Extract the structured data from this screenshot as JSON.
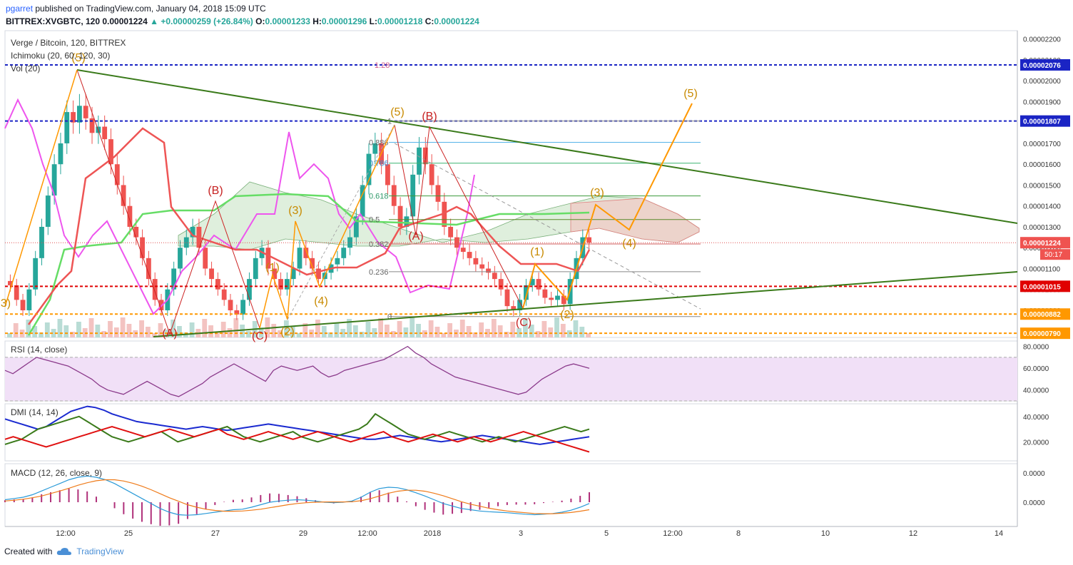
{
  "header": {
    "user": "pgarret",
    "published_text": "published on TradingView.com, January 04, 2018 15:09 UTC",
    "symbol": "BITTREX:XVGBTC, 120",
    "last": "0.00001224",
    "change": "▲ +0.00000259 (+26.84%)",
    "o_label": "O:",
    "o_value": "0.00001233",
    "h_label": "H:",
    "h_value": "0.00001296",
    "l_label": "L:",
    "l_value": "0.00001218",
    "c_label": "C:",
    "c_value": "0.00001224"
  },
  "footer": {
    "created_with": "Created with",
    "brand": "TradingView",
    "icon": "tradingview-cloud-icon"
  },
  "colors": {
    "up": "#26a69a",
    "down": "#ef5350",
    "blue_level": "#1a24c4",
    "red_level": "#e00000",
    "orange": "#ff9800",
    "trend": "#3a7a1a",
    "magenta": "#ee55ee",
    "rsi": "#8b3a8b"
  },
  "chart_data": [
    {
      "type": "candlestick",
      "pane": "main",
      "title": "Verge / Bitcoin, 120, BITTREX",
      "indicators": [
        "Ichimoku (20, 60, 120, 30)",
        "Vol (20)"
      ],
      "ylim": [
        7.7e-06,
        2.24e-05
      ],
      "y_ticks": [
        "0.00002200",
        "0.00002100",
        "0.00002000",
        "0.00001900",
        "0.00001800",
        "0.00001700",
        "0.00001600",
        "0.00001500",
        "0.00001400",
        "0.00001300",
        "0.00001200",
        "0.00001100",
        "0.00001000",
        "0.00000900",
        "0.00000800"
      ],
      "x_ticks": [
        "12:00",
        "25",
        "27",
        "29",
        "12:00",
        "2018",
        "3",
        "5",
        "12:00",
        "8",
        "10",
        "12",
        "14"
      ],
      "price_levels": [
        {
          "label": "0.00002076",
          "value": 2.076e-05,
          "style": "blue"
        },
        {
          "label": "0.00001807",
          "value": 1.807e-05,
          "style": "blue"
        },
        {
          "label": "0.00001224",
          "value": 1.224e-05,
          "style": "last"
        },
        {
          "label": "0.00001015",
          "value": 1.015e-05,
          "style": "red"
        },
        {
          "label": "0.00000882",
          "value": 8.82e-06,
          "style": "orange"
        },
        {
          "label": "0.00000790",
          "value": 7.9e-06,
          "style": "orange"
        }
      ],
      "countdown": "50:17",
      "fib_levels": [
        {
          "label": "1.28",
          "value": 2.076e-05
        },
        {
          "label": "1",
          "value": 1.807e-05
        },
        {
          "label": "0.886",
          "value": 1.705e-05
        },
        {
          "label": "0.786",
          "value": 1.605e-05
        },
        {
          "label": "0.618",
          "value": 1.448e-05
        },
        {
          "label": "0.5",
          "value": 1.335e-05
        },
        {
          "label": "0.382",
          "value": 1.218e-05
        },
        {
          "label": "0.236",
          "value": 1.085e-05
        },
        {
          "label": "0",
          "value": 8.7e-06
        }
      ],
      "wave_labels": [
        "(5)",
        "(A)",
        "(B)",
        "(C)",
        "(1)",
        "(2)",
        "(3)",
        "(4)",
        "(5)",
        "(A)",
        "(B)",
        "(C)",
        "(1)",
        "(2)",
        "(3)",
        "(4)",
        "(5)",
        "3)"
      ],
      "closes": [
        1.02e-05,
        9.5e-06,
        9e-06,
        1e-05,
        1.15e-05,
        1.3e-05,
        1.45e-05,
        1.6e-05,
        1.7e-05,
        1.85e-05,
        1.8e-05,
        1.88e-05,
        1.82e-05,
        1.75e-05,
        1.78e-05,
        1.72e-05,
        1.6e-05,
        1.5e-05,
        1.4e-05,
        1.3e-05,
        1.25e-05,
        1.15e-05,
        1.05e-05,
        9.5e-06,
        9e-06,
        1e-05,
        1.1e-05,
        1.2e-05,
        1.25e-05,
        1.3e-05,
        1.2e-05,
        1.1e-05,
        1.05e-05,
        1e-05,
        9.5e-06,
        9e-06,
        8.8e-06,
        9.5e-06,
        1.05e-05,
        1.15e-05,
        1.2e-05,
        1.1e-05,
        1.05e-05,
        1e-05,
        1.05e-05,
        1.1e-05,
        1.2e-05,
        1.15e-05,
        1.1e-05,
        1.05e-05,
        1.08e-05,
        1.12e-05,
        1.15e-05,
        1.2e-05,
        1.25e-05,
        1.35e-05,
        1.5e-05,
        1.65e-05,
        1.7e-05,
        1.6e-05,
        1.5e-05,
        1.4e-05,
        1.3e-05,
        1.35e-05,
        1.55e-05,
        1.68e-05,
        1.6e-05,
        1.5e-05,
        1.42e-05,
        1.3e-05,
        1.25e-05,
        1.2e-05,
        1.18e-05,
        1.15e-05,
        1.12e-05,
        1.1e-05,
        1.08e-05,
        1.05e-05,
        1e-05,
        9.2e-06,
        9e-06,
        9.5e-06,
        1.02e-05,
        1.05e-05,
        1e-05,
        9.6e-06,
        9.5e-06,
        9.7e-06,
        9.3e-06,
        1.05e-05,
        1.15e-05,
        1.25e-05,
        1.224e-05
      ]
    },
    {
      "type": "line",
      "pane": "rsi",
      "title": "RSI (14, close)",
      "ylim": [
        30,
        85
      ],
      "y_ticks": [
        "80.0000",
        "60.0000",
        "40.0000"
      ],
      "band": [
        30,
        70
      ],
      "values": [
        58,
        55,
        60,
        65,
        70,
        68,
        66,
        64,
        62,
        58,
        54,
        50,
        44,
        40,
        38,
        36,
        40,
        44,
        48,
        44,
        40,
        36,
        34,
        38,
        42,
        46,
        52,
        56,
        60,
        64,
        60,
        56,
        52,
        48,
        58,
        62,
        60,
        58,
        60,
        62,
        56,
        52,
        54,
        58,
        60,
        62,
        64,
        66,
        68,
        72,
        76,
        80,
        74,
        70,
        64,
        60,
        56,
        52,
        50,
        48,
        46,
        44,
        42,
        40,
        38,
        36,
        38,
        44,
        50,
        54,
        58,
        62,
        64,
        62,
        60
      ]
    },
    {
      "type": "line",
      "pane": "dmi",
      "title": "DMI (14, 14)",
      "y_ticks": [
        "40.0000",
        "20.0000"
      ],
      "ylim": [
        5,
        50
      ],
      "series": [
        {
          "values": [
            38,
            36,
            34,
            32,
            30,
            32,
            36,
            40,
            44,
            46,
            48,
            47,
            45,
            42,
            40,
            38,
            36,
            35,
            34,
            33,
            32,
            31,
            30,
            31,
            32,
            31,
            30,
            29,
            30,
            31,
            32,
            33,
            34,
            33,
            32,
            31,
            30,
            29,
            28,
            27,
            26,
            25,
            24,
            23,
            22,
            22,
            23,
            24,
            25,
            24,
            23,
            22,
            21,
            20,
            21,
            22,
            23,
            24,
            25,
            24,
            23,
            22,
            21,
            20,
            19,
            18,
            19,
            20,
            21,
            22,
            23,
            24
          ]
        },
        {
          "values": [
            18,
            20,
            22,
            26,
            30,
            32,
            34,
            36,
            38,
            40,
            36,
            32,
            28,
            24,
            22,
            20,
            22,
            24,
            26,
            28,
            24,
            20,
            22,
            24,
            26,
            28,
            30,
            32,
            28,
            24,
            22,
            20,
            22,
            24,
            26,
            28,
            24,
            22,
            20,
            22,
            24,
            26,
            28,
            30,
            34,
            42,
            38,
            34,
            30,
            26,
            24,
            22,
            24,
            26,
            28,
            26,
            24,
            22,
            20,
            22,
            24,
            22,
            20,
            22,
            24,
            26,
            28,
            30,
            32,
            30,
            28,
            30
          ]
        },
        {
          "values": [
            22,
            24,
            22,
            20,
            18,
            16,
            18,
            20,
            22,
            24,
            26,
            28,
            30,
            32,
            30,
            28,
            26,
            24,
            26,
            28,
            30,
            28,
            26,
            24,
            26,
            28,
            30,
            26,
            24,
            22,
            24,
            26,
            28,
            26,
            24,
            22,
            24,
            26,
            28,
            26,
            24,
            22,
            20,
            22,
            24,
            26,
            28,
            24,
            22,
            20,
            22,
            24,
            26,
            24,
            22,
            20,
            22,
            24,
            22,
            20,
            22,
            24,
            26,
            28,
            26,
            24,
            22,
            20,
            18,
            16,
            14,
            12
          ]
        }
      ]
    },
    {
      "type": "line",
      "pane": "macd",
      "title": "MACD (12, 26, close, 9)",
      "y_ticks": [
        "0.0000",
        "0.0000"
      ],
      "ylim": [
        -1.2,
        1.2
      ],
      "series": [
        {
          "values": [
            0.1,
            0.15,
            0.2,
            0.3,
            0.45,
            0.6,
            0.75,
            0.9,
            1.0,
            1.05,
            1.0,
            0.9,
            0.75,
            0.55,
            0.35,
            0.15,
            -0.05,
            -0.25,
            -0.4,
            -0.5,
            -0.52,
            -0.5,
            -0.45,
            -0.4,
            -0.35,
            -0.3,
            -0.28,
            -0.2,
            -0.1,
            0.0,
            0.05,
            0.08,
            0.1,
            0.08,
            0.05,
            0.0,
            -0.02,
            0.0,
            0.05,
            0.2,
            0.4,
            0.55,
            0.6,
            0.58,
            0.5,
            0.38,
            0.25,
            0.1,
            -0.05,
            -0.15,
            -0.25,
            -0.3,
            -0.35,
            -0.38,
            -0.4,
            -0.42,
            -0.45,
            -0.48,
            -0.5,
            -0.48,
            -0.45,
            -0.4,
            -0.32,
            -0.2,
            -0.05
          ]
        },
        {
          "values": [
            0.05,
            0.08,
            0.12,
            0.18,
            0.25,
            0.35,
            0.45,
            0.56,
            0.68,
            0.78,
            0.86,
            0.9,
            0.9,
            0.85,
            0.76,
            0.64,
            0.5,
            0.34,
            0.18,
            0.04,
            -0.1,
            -0.2,
            -0.28,
            -0.33,
            -0.36,
            -0.36,
            -0.35,
            -0.32,
            -0.28,
            -0.22,
            -0.16,
            -0.1,
            -0.05,
            -0.02,
            0.0,
            0.01,
            0.01,
            0.01,
            0.02,
            0.06,
            0.14,
            0.25,
            0.36,
            0.44,
            0.48,
            0.48,
            0.44,
            0.36,
            0.26,
            0.14,
            0.02,
            -0.08,
            -0.16,
            -0.24,
            -0.3,
            -0.35,
            -0.39,
            -0.42,
            -0.45,
            -0.46,
            -0.46,
            -0.44,
            -0.41,
            -0.36,
            -0.3
          ]
        }
      ]
    }
  ]
}
